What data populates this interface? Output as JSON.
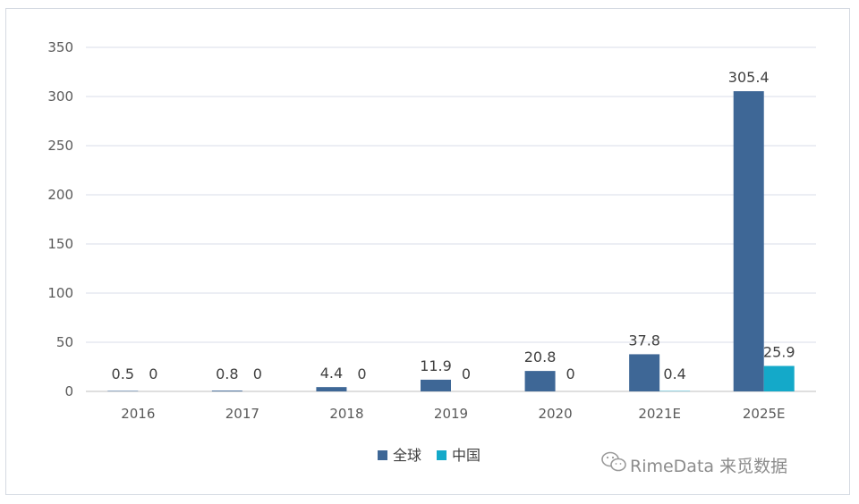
{
  "chart_data": {
    "type": "bar",
    "categories": [
      "2016",
      "2017",
      "2018",
      "2019",
      "2020",
      "2021E",
      "2025E"
    ],
    "series": [
      {
        "name": "全球",
        "color": "#3e6796",
        "values": [
          0.5,
          0.8,
          4.4,
          11.9,
          20.8,
          37.8,
          305.4
        ],
        "labels": [
          "0.5",
          "0.8",
          "4.4",
          "11.9",
          "20.8",
          "37.8",
          "305.4"
        ]
      },
      {
        "name": "中国",
        "color": "#14a9c9",
        "values": [
          0,
          0,
          0,
          0,
          0,
          0.4,
          25.9
        ],
        "labels": [
          "0",
          "0",
          "0",
          "0",
          "0",
          "0.4",
          "25.9"
        ]
      }
    ],
    "yticks": [
      "0",
      "50",
      "100",
      "150",
      "200",
      "250",
      "300",
      "350"
    ],
    "ylim": [
      0,
      350
    ],
    "grid": true,
    "legend_position": "bottom"
  },
  "watermark": {
    "text": "RimeData 来觅数据",
    "icon": "wechat-icon"
  }
}
